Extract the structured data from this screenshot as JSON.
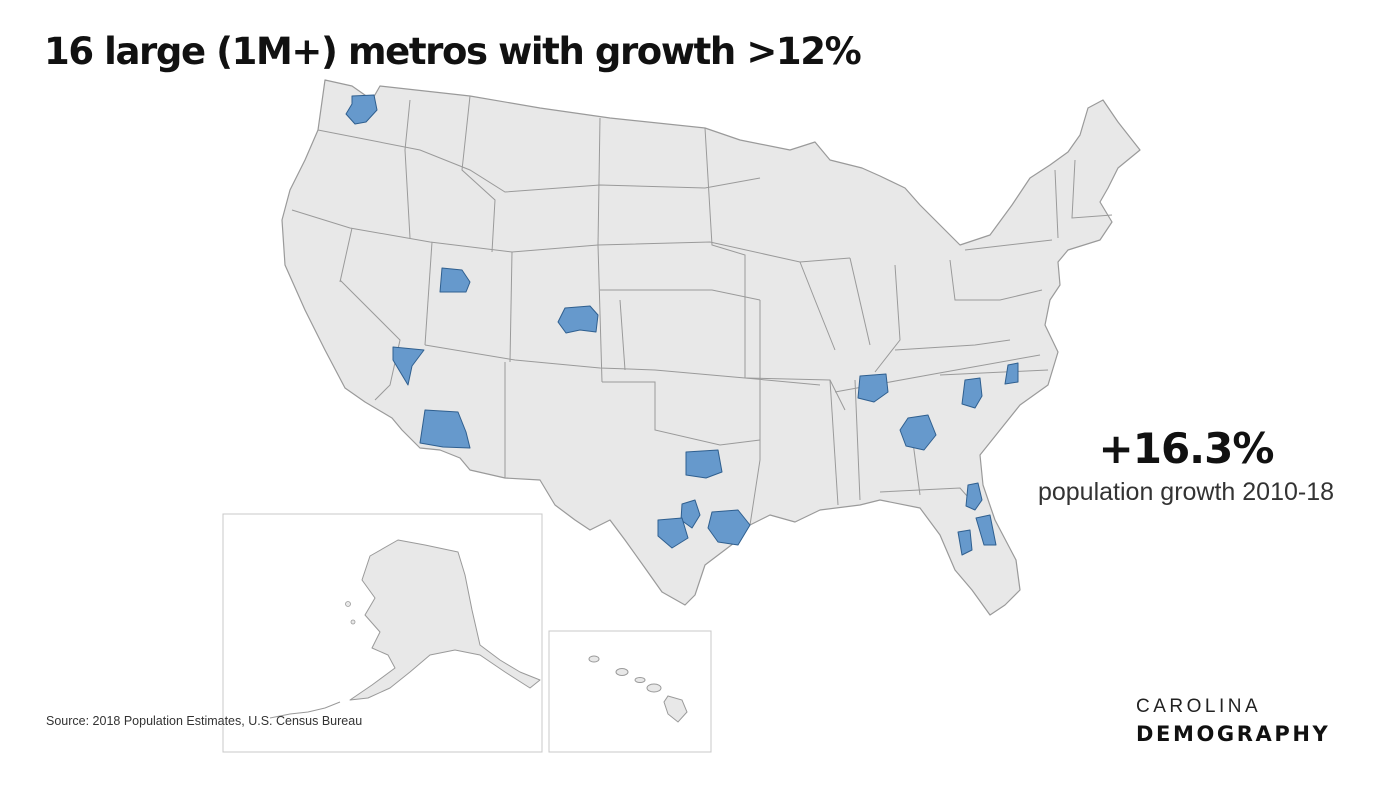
{
  "title": "16 large (1M+) metros with growth >12%",
  "stat": {
    "value": "+16.3%",
    "label": "population growth 2010-18"
  },
  "source": "Source: 2018 Population Estimates, U.S. Census Bureau",
  "brand": {
    "line1": "CAROLINA",
    "line2": "DEMOGRAPHY"
  },
  "colors": {
    "land": "#e8e8e8",
    "border": "#9a9a9a",
    "highlight": "#6699cc",
    "highlight_border": "#2f5f8f",
    "text": "#111111"
  },
  "map": {
    "region": "United States (lower 48, with Alaska and Hawaii insets)",
    "highlighted_metros": [
      "Seattle",
      "Salt Lake City",
      "Denver",
      "Las Vegas",
      "Phoenix",
      "Dallas-Fort Worth",
      "Austin",
      "San Antonio",
      "Houston",
      "Nashville",
      "Atlanta",
      "Charlotte",
      "Raleigh",
      "Jacksonville",
      "Orlando",
      "Tampa"
    ]
  }
}
